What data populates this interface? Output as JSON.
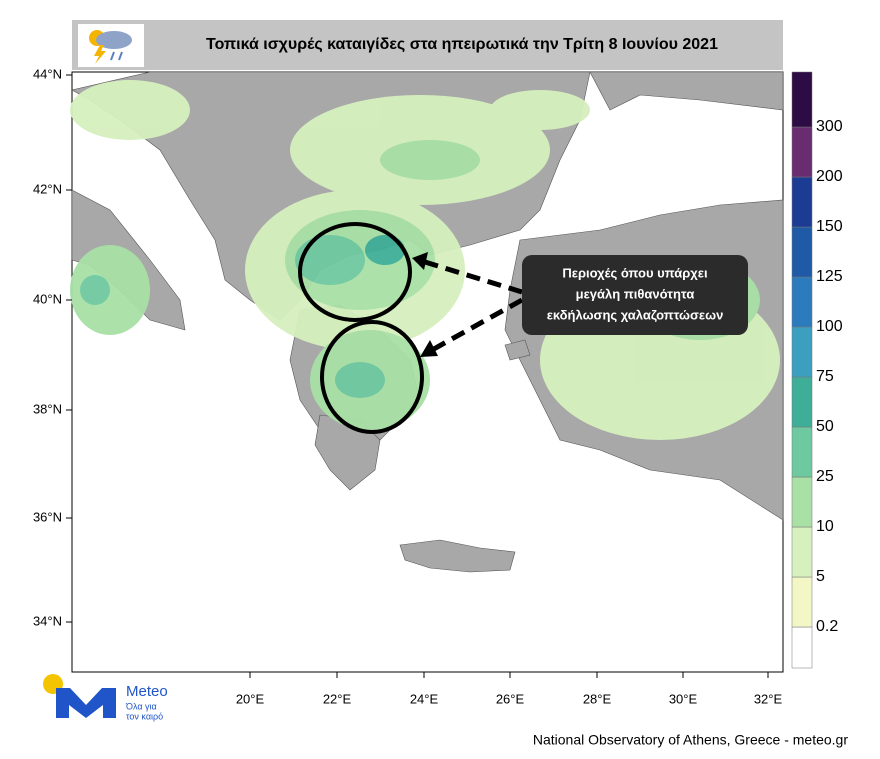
{
  "title": "Τοπικά ισχυρές καταιγίδες στα ηπειρωτικά την Τρίτη 8 Ιουνίου 2021",
  "map": {
    "lat_labels": [
      "44°N",
      "42°N",
      "40°N",
      "38°N",
      "36°N",
      "34°N"
    ],
    "lon_labels": [
      "20°E",
      "22°E",
      "24°E",
      "26°E",
      "28°E",
      "30°E",
      "32°E"
    ]
  },
  "annotation": {
    "lines": [
      "Περιοχές όπου υπάρχει",
      "μεγάλη πιθανότητα",
      "εκδήλωσης χαλαζοπτώσεων"
    ]
  },
  "colorbar": {
    "levels": [
      0.2,
      5,
      10,
      25,
      50,
      75,
      100,
      125,
      150,
      200,
      300
    ],
    "colors": [
      "#ffffff",
      "#f3f7c6",
      "#d6f0be",
      "#a8e0a6",
      "#6fc9a0",
      "#3fae98",
      "#3c9fc0",
      "#2b7bbd",
      "#1f5aa6",
      "#1c3c93",
      "#6a2c70",
      "#2d0b45"
    ]
  },
  "logo": {
    "name": "Meteo",
    "tagline": [
      "Όλα για",
      "τον καιρό"
    ]
  },
  "footer": "National Observatory of Athens, Greece - meteo.gr"
}
